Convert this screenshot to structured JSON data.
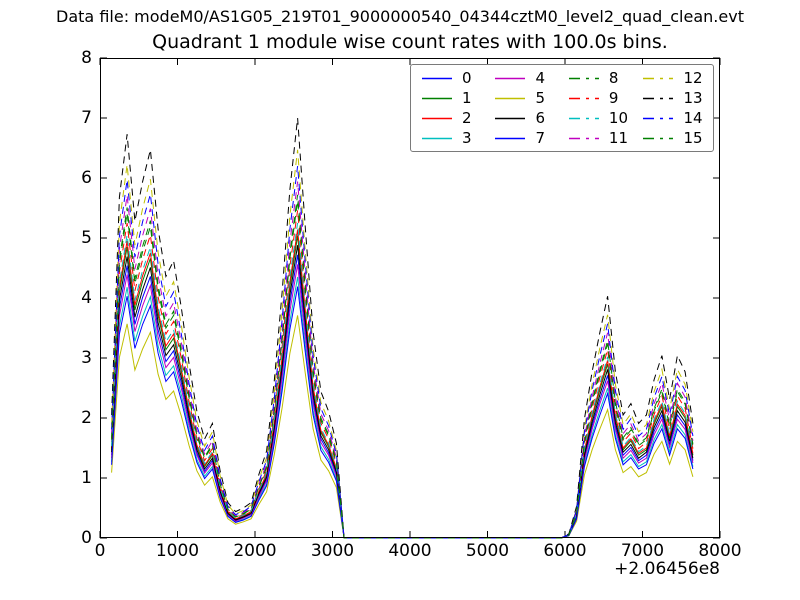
{
  "header": {
    "data_file": "Data file: modeM0/AS1G05_219T01_9000000540_04344cztM0_level2_quad_clean.evt"
  },
  "chart_data": {
    "type": "line",
    "title": "Quadrant 1 module wise count rates with 100.0s bins.",
    "xlabel": "",
    "ylabel": "",
    "x_offset_text": "+2.06456e8",
    "xlim": [
      0,
      8000
    ],
    "ylim": [
      0,
      8
    ],
    "x_ticks": [
      0,
      1000,
      2000,
      3000,
      4000,
      5000,
      6000,
      7000,
      8000
    ],
    "y_ticks": [
      0,
      1,
      2,
      3,
      4,
      5,
      6,
      7,
      8
    ],
    "grid": false,
    "tick_direction": "in",
    "axis_color": "#000000",
    "background_color": "#ffffff",
    "legend_position": "upper center",
    "legend_ncol": 4,
    "x": [
      150,
      250,
      350,
      450,
      550,
      650,
      750,
      850,
      950,
      1050,
      1150,
      1250,
      1350,
      1450,
      1550,
      1650,
      1750,
      1850,
      1950,
      2050,
      2150,
      2250,
      2350,
      2450,
      2550,
      2650,
      2750,
      2850,
      2950,
      3050,
      3150,
      4000,
      5000,
      5950,
      6050,
      6150,
      6250,
      6350,
      6450,
      6550,
      6650,
      6750,
      6850,
      6950,
      7050,
      7150,
      7250,
      7350,
      7450,
      7550,
      7650
    ],
    "series": [
      {
        "name": "0",
        "color": "#0000ff",
        "style": "solid",
        "values": [
          1.38,
          3.83,
          4.54,
          3.56,
          4.01,
          4.36,
          3.47,
          2.94,
          3.12,
          2.58,
          1.96,
          1.42,
          1.11,
          1.29,
          0.76,
          0.4,
          0.29,
          0.34,
          0.4,
          0.71,
          0.98,
          1.78,
          2.76,
          3.92,
          4.72,
          3.47,
          2.31,
          1.65,
          1.42,
          1.07,
          0,
          0,
          0,
          0,
          0.04,
          0.36,
          1.34,
          1.87,
          2.31,
          2.71,
          1.87,
          1.38,
          1.51,
          1.29,
          1.38,
          1.78,
          2.05,
          1.56,
          2.05,
          1.87,
          1.29
        ]
      },
      {
        "name": "1",
        "color": "#008000",
        "style": "solid",
        "values": [
          1.47,
          4.09,
          4.85,
          3.8,
          4.28,
          4.66,
          3.71,
          3.14,
          3.33,
          2.76,
          2.09,
          1.52,
          1.19,
          1.38,
          0.81,
          0.43,
          0.31,
          0.36,
          0.43,
          0.76,
          1.05,
          1.9,
          2.95,
          4.18,
          5.04,
          3.71,
          2.47,
          1.76,
          1.52,
          1.14,
          0,
          0,
          0,
          0,
          0.05,
          0.38,
          1.43,
          2.0,
          2.47,
          2.9,
          2.0,
          1.47,
          1.62,
          1.38,
          1.47,
          1.9,
          2.19,
          1.66,
          2.19,
          2.0,
          1.38
        ]
      },
      {
        "name": "2",
        "color": "#ff0000",
        "style": "solid",
        "values": [
          1.5,
          4.17,
          4.95,
          3.88,
          4.37,
          4.75,
          3.78,
          3.2,
          3.4,
          2.81,
          2.13,
          1.55,
          1.21,
          1.41,
          0.82,
          0.44,
          0.32,
          0.37,
          0.44,
          0.78,
          1.07,
          1.94,
          3.01,
          4.27,
          5.14,
          3.78,
          2.52,
          1.79,
          1.55,
          1.16,
          0,
          0,
          0,
          0,
          0.05,
          0.39,
          1.46,
          2.04,
          2.52,
          2.96,
          2.04,
          1.5,
          1.65,
          1.41,
          1.5,
          1.94,
          2.23,
          1.7,
          2.23,
          2.04,
          1.41
        ]
      },
      {
        "name": "3",
        "color": "#00bfbf",
        "style": "solid",
        "values": [
          1.27,
          3.53,
          4.18,
          3.28,
          3.69,
          4.02,
          3.2,
          2.71,
          2.87,
          2.38,
          1.8,
          1.31,
          1.03,
          1.19,
          0.7,
          0.37,
          0.27,
          0.31,
          0.37,
          0.66,
          0.9,
          1.64,
          2.54,
          3.61,
          4.35,
          3.2,
          2.13,
          1.52,
          1.31,
          0.98,
          0,
          0,
          0,
          0,
          0.04,
          0.33,
          1.23,
          1.72,
          2.13,
          2.5,
          1.72,
          1.27,
          1.39,
          1.19,
          1.27,
          1.64,
          1.89,
          1.44,
          1.89,
          1.72,
          1.19
        ]
      },
      {
        "name": "4",
        "color": "#bf00bf",
        "style": "solid",
        "values": [
          1.33,
          3.7,
          4.39,
          3.44,
          3.87,
          4.21,
          3.35,
          2.84,
          3.01,
          2.49,
          1.89,
          1.38,
          1.08,
          1.25,
          0.73,
          0.39,
          0.28,
          0.33,
          0.39,
          0.69,
          0.95,
          1.72,
          2.67,
          3.78,
          4.56,
          3.35,
          2.24,
          1.59,
          1.38,
          1.03,
          0,
          0,
          0,
          0,
          0.04,
          0.34,
          1.29,
          1.81,
          2.24,
          2.62,
          1.81,
          1.33,
          1.46,
          1.25,
          1.33,
          1.72,
          1.98,
          1.51,
          1.98,
          1.81,
          1.25
        ]
      },
      {
        "name": "5",
        "color": "#bfbf00",
        "style": "solid",
        "values": [
          1.09,
          3.01,
          3.57,
          2.8,
          3.15,
          3.43,
          2.73,
          2.31,
          2.45,
          2.03,
          1.54,
          1.12,
          0.88,
          1.02,
          0.6,
          0.32,
          0.23,
          0.27,
          0.32,
          0.56,
          0.77,
          1.4,
          2.17,
          3.08,
          3.71,
          2.73,
          1.82,
          1.3,
          1.12,
          0.84,
          0,
          0,
          0,
          0,
          0.04,
          0.28,
          1.05,
          1.47,
          1.82,
          2.14,
          1.47,
          1.09,
          1.19,
          1.02,
          1.09,
          1.4,
          1.61,
          1.23,
          1.61,
          1.47,
          1.02
        ]
      },
      {
        "name": "6",
        "color": "#000000",
        "style": "solid",
        "values": [
          1.43,
          3.96,
          4.69,
          3.68,
          4.14,
          4.51,
          3.59,
          3.04,
          3.22,
          2.67,
          2.02,
          1.47,
          1.15,
          1.33,
          0.78,
          0.41,
          0.3,
          0.35,
          0.41,
          0.74,
          1.01,
          1.84,
          2.85,
          4.05,
          4.88,
          3.59,
          2.39,
          1.7,
          1.47,
          1.1,
          0,
          0,
          0,
          0,
          0.05,
          0.37,
          1.38,
          1.93,
          2.39,
          2.81,
          1.93,
          1.43,
          1.56,
          1.33,
          1.43,
          1.84,
          2.12,
          1.61,
          2.12,
          1.93,
          1.33
        ]
      },
      {
        "name": "7",
        "color": "#0000ff",
        "style": "solid",
        "values": [
          1.22,
          3.4,
          4.03,
          3.16,
          3.56,
          3.87,
          3.08,
          2.61,
          2.77,
          2.29,
          1.74,
          1.26,
          0.99,
          1.15,
          0.67,
          0.36,
          0.26,
          0.3,
          0.36,
          0.63,
          0.87,
          1.58,
          2.45,
          3.48,
          4.19,
          3.08,
          2.05,
          1.46,
          1.26,
          0.95,
          0,
          0,
          0,
          0,
          0.04,
          0.32,
          1.19,
          1.66,
          2.05,
          2.41,
          1.66,
          1.22,
          1.34,
          1.15,
          1.22,
          1.58,
          1.82,
          1.38,
          1.82,
          1.66,
          1.15
        ]
      },
      {
        "name": "8",
        "color": "#008000",
        "style": "dashed",
        "values": [
          1.67,
          4.64,
          5.51,
          4.32,
          4.86,
          5.29,
          4.21,
          3.56,
          3.78,
          3.13,
          2.38,
          1.73,
          1.35,
          1.57,
          0.92,
          0.49,
          0.36,
          0.41,
          0.49,
          0.86,
          1.19,
          2.16,
          3.35,
          4.75,
          5.72,
          4.21,
          2.81,
          2.0,
          1.73,
          1.3,
          0,
          0,
          0,
          0,
          0.05,
          0.43,
          1.62,
          2.27,
          2.81,
          3.29,
          2.27,
          1.67,
          1.84,
          1.57,
          1.67,
          2.16,
          2.48,
          1.89,
          2.48,
          2.27,
          1.57
        ]
      },
      {
        "name": "9",
        "color": "#ff0000",
        "style": "dashed",
        "values": [
          1.6,
          4.43,
          5.25,
          4.12,
          4.64,
          5.05,
          4.02,
          3.4,
          3.61,
          2.99,
          2.27,
          1.65,
          1.29,
          1.49,
          0.88,
          0.46,
          0.34,
          0.39,
          0.46,
          0.82,
          1.13,
          2.06,
          3.19,
          4.53,
          5.46,
          4.02,
          2.68,
          1.91,
          1.65,
          1.24,
          0,
          0,
          0,
          0,
          0.05,
          0.41,
          1.55,
          2.16,
          2.68,
          3.14,
          2.16,
          1.6,
          1.75,
          1.49,
          1.6,
          2.06,
          2.37,
          1.8,
          2.37,
          2.16,
          1.49
        ]
      },
      {
        "name": "10",
        "color": "#00bfbf",
        "style": "dashed",
        "values": [
          1.53,
          4.26,
          5.05,
          3.96,
          4.46,
          4.85,
          3.86,
          3.27,
          3.47,
          2.87,
          2.18,
          1.58,
          1.24,
          1.44,
          0.84,
          0.45,
          0.33,
          0.38,
          0.45,
          0.79,
          1.09,
          1.98,
          3.07,
          4.36,
          5.25,
          3.86,
          2.57,
          1.83,
          1.58,
          1.19,
          0,
          0,
          0,
          0,
          0.05,
          0.4,
          1.49,
          2.08,
          2.57,
          3.02,
          2.08,
          1.53,
          1.68,
          1.44,
          1.53,
          1.98,
          2.28,
          1.73,
          2.28,
          2.08,
          1.44
        ]
      },
      {
        "name": "11",
        "color": "#bf00bf",
        "style": "dashed",
        "values": [
          1.74,
          4.82,
          5.71,
          4.48,
          5.04,
          5.49,
          4.37,
          3.7,
          3.92,
          3.25,
          2.46,
          1.79,
          1.4,
          1.62,
          0.95,
          0.5,
          0.37,
          0.43,
          0.5,
          0.9,
          1.23,
          2.24,
          3.47,
          4.93,
          5.94,
          4.37,
          2.91,
          2.07,
          1.79,
          1.34,
          0,
          0,
          0,
          0,
          0.06,
          0.45,
          1.68,
          2.35,
          2.91,
          3.42,
          2.35,
          1.74,
          1.9,
          1.62,
          1.74,
          2.24,
          2.58,
          1.96,
          2.58,
          2.35,
          1.62
        ]
      },
      {
        "name": "12",
        "color": "#bfbf00",
        "style": "dashed",
        "values": [
          1.89,
          5.25,
          6.22,
          4.88,
          5.49,
          5.98,
          4.76,
          4.03,
          4.27,
          3.54,
          2.68,
          1.95,
          1.53,
          1.77,
          1.04,
          0.55,
          0.4,
          0.46,
          0.55,
          0.98,
          1.34,
          2.44,
          3.78,
          5.37,
          6.47,
          4.76,
          3.17,
          2.26,
          1.95,
          1.46,
          0,
          0,
          0,
          0,
          0.06,
          0.49,
          1.83,
          2.56,
          3.17,
          3.72,
          2.56,
          1.89,
          2.07,
          1.77,
          1.89,
          2.44,
          2.81,
          2.14,
          2.81,
          2.56,
          1.77
        ]
      },
      {
        "name": "13",
        "color": "#000000",
        "style": "dashed",
        "values": [
          2.05,
          5.68,
          6.73,
          5.28,
          5.94,
          6.47,
          5.15,
          4.36,
          4.62,
          3.83,
          2.9,
          2.11,
          1.65,
          1.91,
          1.12,
          0.59,
          0.44,
          0.5,
          0.59,
          1.06,
          1.45,
          2.64,
          4.09,
          5.81,
          7.0,
          5.15,
          3.43,
          2.44,
          2.11,
          1.58,
          0,
          0,
          0,
          0,
          0.07,
          0.53,
          1.98,
          2.77,
          3.43,
          4.03,
          2.77,
          2.05,
          2.24,
          1.91,
          2.05,
          2.64,
          3.04,
          2.31,
          3.04,
          2.77,
          1.91
        ]
      },
      {
        "name": "14",
        "color": "#0000ff",
        "style": "dashed",
        "values": [
          1.81,
          5.03,
          5.97,
          4.68,
          5.27,
          5.73,
          4.56,
          3.86,
          4.1,
          3.39,
          2.57,
          1.87,
          1.46,
          1.7,
          0.99,
          0.53,
          0.39,
          0.44,
          0.53,
          0.94,
          1.29,
          2.34,
          3.63,
          5.15,
          6.2,
          4.56,
          3.04,
          2.16,
          1.87,
          1.4,
          0,
          0,
          0,
          0,
          0.06,
          0.47,
          1.76,
          2.46,
          3.04,
          3.57,
          2.46,
          1.81,
          1.99,
          1.7,
          1.81,
          2.34,
          2.69,
          2.05,
          2.69,
          2.46,
          1.7
        ]
      },
      {
        "name": "15",
        "color": "#008000",
        "style": "dashed",
        "values": [
          1.64,
          4.56,
          5.41,
          4.24,
          4.77,
          5.19,
          4.13,
          3.5,
          3.71,
          3.07,
          2.33,
          1.7,
          1.33,
          1.54,
          0.9,
          0.48,
          0.35,
          0.4,
          0.48,
          0.85,
          1.17,
          2.12,
          3.29,
          4.66,
          5.62,
          4.13,
          2.76,
          1.96,
          1.7,
          1.27,
          0,
          0,
          0,
          0,
          0.05,
          0.42,
          1.59,
          2.23,
          2.76,
          3.23,
          2.23,
          1.64,
          1.8,
          1.54,
          1.64,
          2.12,
          2.44,
          1.86,
          2.44,
          2.23,
          1.54
        ]
      }
    ]
  }
}
